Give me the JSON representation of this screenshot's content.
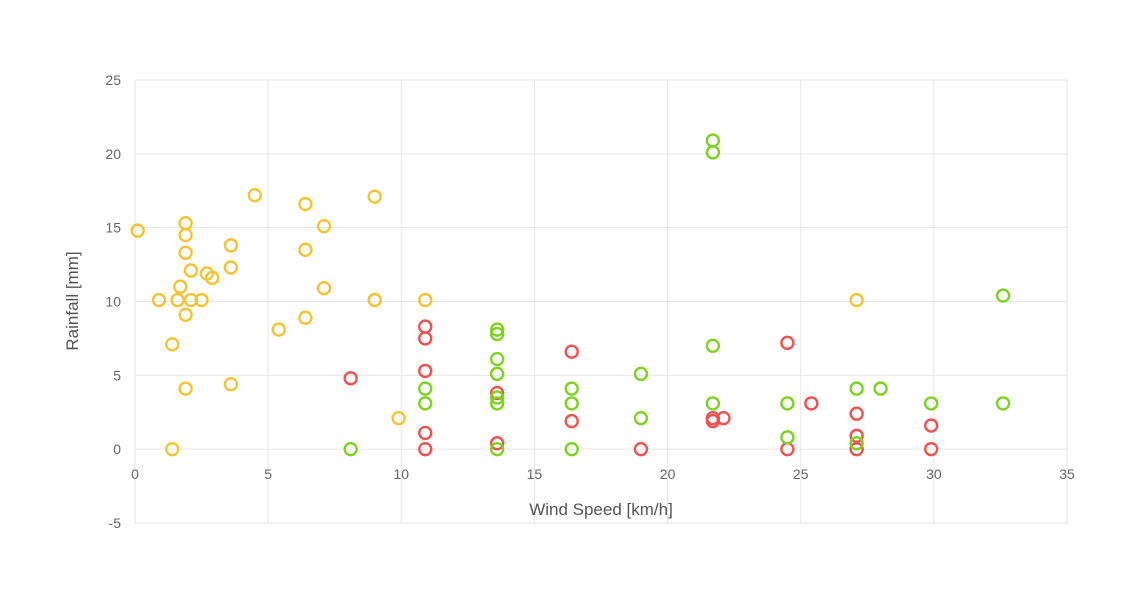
{
  "chart_data": {
    "type": "scatter",
    "title": "",
    "xlabel": "Wind Speed [km/h]",
    "ylabel": "Rainfall [mm]",
    "xlim": [
      0,
      35
    ],
    "ylim": [
      -5,
      25
    ],
    "x_ticks": [
      0,
      5,
      10,
      15,
      20,
      25,
      30,
      35
    ],
    "y_ticks": [
      -5,
      0,
      5,
      10,
      15,
      20,
      25
    ],
    "x_tick_labels": [
      "0",
      "5",
      "10",
      "15",
      "20",
      "25",
      "30",
      "35"
    ],
    "y_tick_labels": [
      "-5",
      "0",
      "5",
      "10",
      "15",
      "20",
      "25"
    ],
    "grid": true,
    "legend": "none",
    "series": [
      {
        "color": "#f5c433",
        "points": [
          [
            0.1,
            14.8
          ],
          [
            0.9,
            10.1
          ],
          [
            1.4,
            7.1
          ],
          [
            1.4,
            0.0
          ],
          [
            1.6,
            10.1
          ],
          [
            1.7,
            11.0
          ],
          [
            1.9,
            15.3
          ],
          [
            1.9,
            14.5
          ],
          [
            1.9,
            13.3
          ],
          [
            1.9,
            9.1
          ],
          [
            1.9,
            4.1
          ],
          [
            2.1,
            12.1
          ],
          [
            2.1,
            10.1
          ],
          [
            2.5,
            10.1
          ],
          [
            2.7,
            11.9
          ],
          [
            2.9,
            11.6
          ],
          [
            3.6,
            13.8
          ],
          [
            3.6,
            12.3
          ],
          [
            3.6,
            4.4
          ],
          [
            4.5,
            17.2
          ],
          [
            5.4,
            8.1
          ],
          [
            6.4,
            16.6
          ],
          [
            6.4,
            13.5
          ],
          [
            6.4,
            8.9
          ],
          [
            7.1,
            15.1
          ],
          [
            7.1,
            10.9
          ],
          [
            9.0,
            17.1
          ],
          [
            9.0,
            10.1
          ],
          [
            9.9,
            2.1
          ],
          [
            10.9,
            10.1
          ],
          [
            27.1,
            10.1
          ]
        ]
      },
      {
        "color": "#ef5350",
        "points": [
          [
            8.1,
            4.8
          ],
          [
            10.9,
            8.3
          ],
          [
            10.9,
            7.5
          ],
          [
            10.9,
            5.3
          ],
          [
            10.9,
            1.1
          ],
          [
            10.9,
            0.0
          ],
          [
            13.6,
            3.8
          ],
          [
            13.6,
            0.4
          ],
          [
            16.4,
            6.6
          ],
          [
            16.4,
            1.9
          ],
          [
            19.0,
            0.0
          ],
          [
            21.7,
            2.1
          ],
          [
            21.7,
            1.9
          ],
          [
            22.1,
            2.1
          ],
          [
            24.5,
            7.2
          ],
          [
            24.5,
            0.0
          ],
          [
            25.4,
            3.1
          ],
          [
            27.1,
            2.4
          ],
          [
            27.1,
            0.9
          ],
          [
            27.1,
            0.0
          ],
          [
            29.9,
            1.6
          ],
          [
            29.9,
            0.0
          ]
        ]
      },
      {
        "color": "#7ed321",
        "points": [
          [
            8.1,
            0.0
          ],
          [
            10.9,
            4.1
          ],
          [
            10.9,
            3.1
          ],
          [
            13.6,
            8.1
          ],
          [
            13.6,
            7.8
          ],
          [
            13.6,
            6.1
          ],
          [
            13.6,
            5.1
          ],
          [
            13.6,
            3.5
          ],
          [
            13.6,
            3.1
          ],
          [
            13.6,
            0.0
          ],
          [
            16.4,
            4.1
          ],
          [
            16.4,
            3.1
          ],
          [
            16.4,
            0.0
          ],
          [
            19.0,
            5.1
          ],
          [
            19.0,
            2.1
          ],
          [
            21.7,
            20.9
          ],
          [
            21.7,
            20.1
          ],
          [
            21.7,
            7.0
          ],
          [
            21.7,
            3.1
          ],
          [
            24.5,
            3.1
          ],
          [
            24.5,
            0.8
          ],
          [
            27.1,
            4.1
          ],
          [
            27.1,
            0.4
          ],
          [
            28.0,
            4.1
          ],
          [
            29.9,
            3.1
          ],
          [
            32.6,
            10.4
          ],
          [
            32.6,
            3.1
          ]
        ]
      }
    ]
  }
}
